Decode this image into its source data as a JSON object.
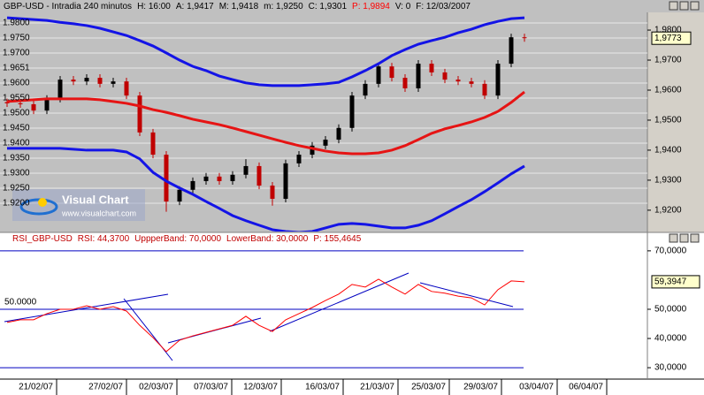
{
  "chart_data": [
    {
      "type": "candlestick",
      "title": [
        {
          "text": "GBP-USD - Intradia 240 minutos",
          "color": "#000000"
        },
        {
          "text": "H: 16:00",
          "color": "#000000"
        },
        {
          "text": "A: 1,9417",
          "color": "#000000"
        },
        {
          "text": "M: 1,9418",
          "color": "#000000"
        },
        {
          "text": "m: 1,9250",
          "color": "#000000"
        },
        {
          "text": "C: 1,9301",
          "color": "#000000"
        },
        {
          "text": "P: 1,9894",
          "color": "#ff0000"
        },
        {
          "text": "V: 0",
          "color": "#000000"
        },
        {
          "text": "F: 12/03/2007",
          "color": "#000000"
        }
      ],
      "open": [
        1.956,
        1.9556,
        1.9553,
        1.9532,
        1.9571,
        1.9635,
        1.9629,
        1.9641,
        1.9621,
        1.9629,
        1.9582,
        1.9459,
        1.9385,
        1.9229,
        1.9268,
        1.9297,
        1.9312,
        1.9297,
        1.9318,
        1.9347,
        1.9282,
        1.9238,
        1.9356,
        1.9385,
        1.9415,
        1.9435,
        1.9474,
        1.9582,
        1.9621,
        1.9679,
        1.9641,
        1.9606,
        1.9688,
        1.9659,
        1.9635,
        1.9629,
        1.9621,
        1.9582,
        1.9688,
        1.9776
      ],
      "high": [
        1.9572,
        1.9568,
        1.9565,
        1.9583,
        1.9647,
        1.9647,
        1.9653,
        1.9653,
        1.9641,
        1.9641,
        1.9594,
        1.9471,
        1.9397,
        1.928,
        1.9309,
        1.9324,
        1.9324,
        1.933,
        1.937,
        1.9359,
        1.9294,
        1.9368,
        1.9397,
        1.9427,
        1.9447,
        1.9486,
        1.9594,
        1.9633,
        1.9691,
        1.9691,
        1.9653,
        1.97,
        1.97,
        1.9671,
        1.9647,
        1.9641,
        1.9633,
        1.97,
        1.9788,
        1.9788
      ],
      "low": [
        1.9544,
        1.9541,
        1.952,
        1.952,
        1.9559,
        1.9617,
        1.9617,
        1.9609,
        1.9609,
        1.957,
        1.9447,
        1.9373,
        1.9195,
        1.9217,
        1.9256,
        1.9285,
        1.9285,
        1.9285,
        1.9306,
        1.927,
        1.9215,
        1.9226,
        1.9344,
        1.9373,
        1.9403,
        1.9423,
        1.9462,
        1.957,
        1.9609,
        1.9629,
        1.9594,
        1.9594,
        1.9647,
        1.9623,
        1.9617,
        1.9609,
        1.957,
        1.957,
        1.9676,
        1.9761
      ],
      "close": [
        1.9556,
        1.9553,
        1.9532,
        1.9571,
        1.9635,
        1.9629,
        1.9641,
        1.9621,
        1.9629,
        1.9582,
        1.9459,
        1.9385,
        1.9229,
        1.9268,
        1.9297,
        1.9312,
        1.9297,
        1.9318,
        1.9347,
        1.9282,
        1.9238,
        1.9356,
        1.9385,
        1.9415,
        1.9435,
        1.9474,
        1.9582,
        1.9621,
        1.9679,
        1.9641,
        1.9606,
        1.9688,
        1.9659,
        1.9635,
        1.9629,
        1.9621,
        1.9582,
        1.9688,
        1.9776,
        1.9773
      ],
      "up_color": "#000000",
      "down_color": "#c00000",
      "series": [
        {
          "color": "#1414e6",
          "values": [
            1.9841,
            1.9838,
            1.9835,
            1.9832,
            1.9826,
            1.9821,
            1.9815,
            1.9806,
            1.9794,
            1.9782,
            1.9765,
            1.9747,
            1.9724,
            1.97,
            1.9679,
            1.9665,
            1.9647,
            1.9635,
            1.9624,
            1.9618,
            1.9615,
            1.9615,
            1.9615,
            1.9618,
            1.9621,
            1.9626,
            1.9644,
            1.9665,
            1.9688,
            1.9715,
            1.9735,
            1.9753,
            1.9765,
            1.9776,
            1.9791,
            1.9803,
            1.9818,
            1.9829,
            1.9838,
            1.9841
          ]
        },
        {
          "color": "#e61414",
          "values": [
            1.9562,
            1.9565,
            1.9568,
            1.9571,
            1.9571,
            1.9571,
            1.9571,
            1.9568,
            1.9562,
            1.9556,
            1.9547,
            1.9535,
            1.9526,
            1.9515,
            1.9503,
            1.9494,
            1.9485,
            1.9474,
            1.9462,
            1.945,
            1.9438,
            1.9426,
            1.9415,
            1.9406,
            1.9397,
            1.9391,
            1.9388,
            1.9388,
            1.9391,
            1.94,
            1.9415,
            1.9435,
            1.9456,
            1.9471,
            1.9482,
            1.9494,
            1.9509,
            1.9529,
            1.9559,
            1.9594
          ]
        },
        {
          "color": "#1414e6",
          "values": [
            1.9406,
            1.9406,
            1.9406,
            1.9406,
            1.9406,
            1.9403,
            1.94,
            1.94,
            1.94,
            1.9394,
            1.9371,
            1.9326,
            1.9297,
            1.9274,
            1.9253,
            1.9229,
            1.9206,
            1.9182,
            1.9165,
            1.915,
            1.9135,
            1.9129,
            1.9126,
            1.9129,
            1.9141,
            1.9153,
            1.9156,
            1.9153,
            1.9147,
            1.9141,
            1.9141,
            1.915,
            1.9165,
            1.9188,
            1.9212,
            1.9235,
            1.9262,
            1.9291,
            1.9321,
            1.9347
          ]
        }
      ],
      "ylim": [
        1.9129,
        1.9859
      ],
      "yticks": [
        {
          "value": 1.92,
          "label": "1,9200"
        },
        {
          "value": 1.93,
          "label": "1,9300"
        },
        {
          "value": 1.94,
          "label": "1,9400"
        },
        {
          "value": 1.95,
          "label": "1,9500"
        },
        {
          "value": 1.96,
          "label": "1,9600"
        },
        {
          "value": 1.97,
          "label": "1,9700"
        },
        {
          "value": 1.98,
          "label": "1,9800"
        }
      ],
      "left_labels": [
        "1.9800",
        "1.9750",
        "1.9700",
        "1.9651",
        "1.9600",
        "1.9550",
        "1.9500",
        "1.9450",
        "1.9400",
        "1.9350",
        "1.9300",
        "1.9250",
        "1.9200"
      ],
      "price_box": "1,9773",
      "watermark": [
        "Visual Chart",
        "www.visualchart.com"
      ]
    },
    {
      "type": "line",
      "title": [
        "RSI_GBP-USD",
        "RSI: 44,3700",
        "UppperBand: 70,0000",
        "LowerBand: 30,0000",
        "P: 155,4645"
      ],
      "series": [
        {
          "color": "#ff0000",
          "values": [
            45.5,
            46.4,
            46.4,
            48.5,
            50.0,
            50.0,
            51.2,
            50.0,
            50.9,
            49.4,
            44.5,
            40.3,
            35.5,
            39.4,
            40.9,
            42.1,
            43.3,
            44.5,
            47.6,
            44.5,
            42.4,
            46.4,
            48.5,
            50.6,
            53.0,
            55.2,
            58.5,
            57.6,
            60.3,
            57.6,
            55.2,
            58.5,
            56.1,
            55.5,
            54.5,
            53.9,
            51.5,
            56.7,
            59.7,
            59.4
          ]
        }
      ],
      "hlines": [
        70,
        50,
        30
      ],
      "hline_color": "#0000c0",
      "ylim": [
        26.4,
        74.8
      ],
      "yticks": [
        {
          "value": 30,
          "label": "30,0000"
        },
        {
          "value": 40,
          "label": "40,0000"
        },
        {
          "value": 50,
          "label": "50,0000"
        },
        {
          "value": 70,
          "label": "70,0000"
        }
      ],
      "left_label": "50.0000",
      "value_box": "59,3947",
      "x_labels": [
        "21/02/07",
        "27/02/07",
        "02/03/07",
        "07/03/07",
        "12/03/07",
        "16/03/07",
        "21/03/07",
        "25/03/07",
        "29/03/07",
        "03/04/07",
        "06/04/07"
      ]
    }
  ]
}
